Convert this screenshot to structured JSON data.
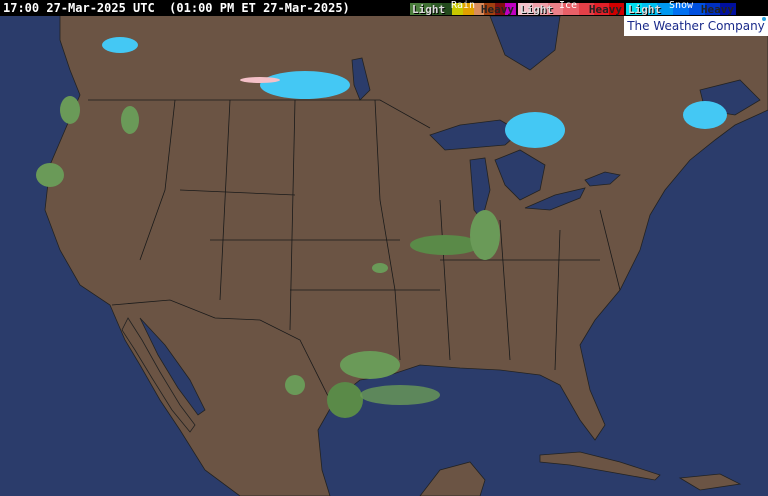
{
  "header": {
    "timestamp": "17:00 27-Mar-2025 UTC  (01:00 PM ET 27-Mar-2025)"
  },
  "legend": {
    "rain": {
      "title": "Rain",
      "light": "Light",
      "heavy": "Heavy",
      "colors": [
        "#4a7d3c",
        "#3f6f33",
        "#2e5a26",
        "#234a1d",
        "#c8c800",
        "#e0a000",
        "#d88c5c",
        "#a04010",
        "#801010",
        "#c000c0"
      ]
    },
    "ice": {
      "title": "Ice",
      "light": "Light",
      "heavy": "Heavy",
      "colors": [
        "#f4c0c8",
        "#f0a0a8",
        "#ec8088",
        "#e86068",
        "#e44048",
        "#e02028",
        "#d00000"
      ]
    },
    "snow": {
      "title": "Snow",
      "light": "Light",
      "heavy": "Heavy",
      "colors": [
        "#00e0f0",
        "#00c0f0",
        "#0098f0",
        "#0070f0",
        "#0050e0",
        "#0030c0",
        "#0010a0"
      ]
    }
  },
  "brand": {
    "name": "The Weather Company"
  },
  "colors": {
    "ocean": "#2b3c6b",
    "land": "#6b5444",
    "borders": "#1a1a1a",
    "rain_light": "#6a9a58",
    "snow_light": "#44c8f4"
  }
}
